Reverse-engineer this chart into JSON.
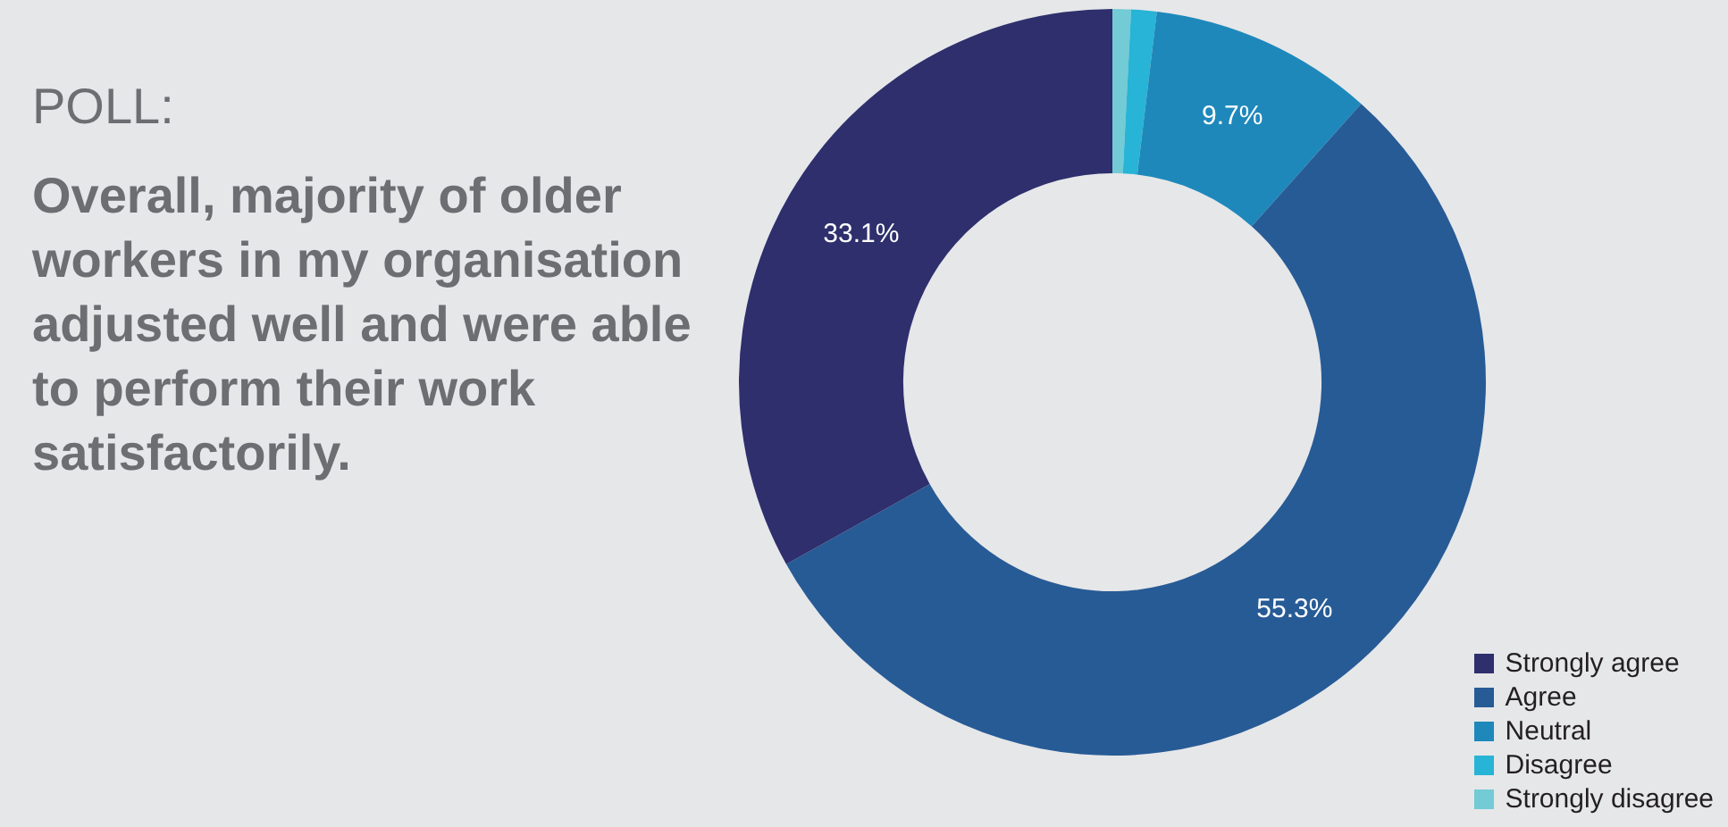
{
  "chart_data": {
    "type": "donut",
    "title": "POLL:",
    "subtitle": "Overall, majority of older workers in my organisation adjusted well and were able to perform their work satisfactorily.",
    "categories": [
      "Strongly agree",
      "Agree",
      "Neutral",
      "Disagree",
      "Strongly disagree"
    ],
    "values": [
      33.1,
      55.3,
      9.7,
      1.1,
      0.8
    ],
    "colors": [
      "#2e2f6c",
      "#275b96",
      "#1e88bb",
      "#27b4d6",
      "#72cbd5"
    ],
    "value_labels": [
      "33.1%",
      "55.3%",
      "9.7%",
      null,
      null
    ],
    "legend": "bottom right"
  }
}
